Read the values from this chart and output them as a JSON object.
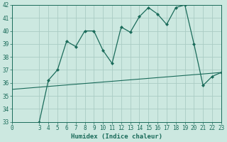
{
  "xlabel": "Humidex (Indice chaleur)",
  "bg_color": "#cce8e0",
  "grid_color": "#aaccc4",
  "line_color": "#1a6b5a",
  "curve_x": [
    3,
    4,
    5,
    6,
    7,
    8,
    9,
    10,
    11,
    12,
    13,
    14,
    15,
    16,
    17,
    18,
    19,
    20,
    21,
    22,
    23
  ],
  "curve_y": [
    33.0,
    36.2,
    37.0,
    39.2,
    38.8,
    40.0,
    40.0,
    38.5,
    37.5,
    40.3,
    39.9,
    41.1,
    41.8,
    41.3,
    40.5,
    41.8,
    42.0,
    39.0,
    35.8,
    36.5,
    36.8
  ],
  "line_x": [
    0,
    23
  ],
  "line_y": [
    35.5,
    36.8
  ],
  "xlim": [
    0,
    23
  ],
  "ylim": [
    33,
    42
  ],
  "yticks": [
    33,
    34,
    35,
    36,
    37,
    38,
    39,
    40,
    41,
    42
  ],
  "xticks": [
    0,
    3,
    4,
    5,
    6,
    7,
    8,
    9,
    10,
    11,
    12,
    13,
    14,
    15,
    16,
    17,
    18,
    19,
    20,
    21,
    22,
    23
  ],
  "xlabel_fontsize": 6.5,
  "tick_fontsize": 5.5,
  "marker_size": 2.5,
  "line_width": 0.9
}
